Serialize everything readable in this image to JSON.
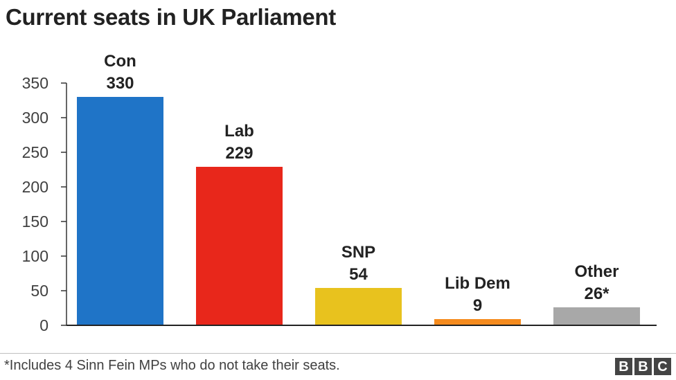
{
  "title": "Current seats in UK Parliament",
  "footnote": "*Includes 4 Sinn Fein MPs who do not take their seats.",
  "logo": {
    "text": "BBC",
    "letters": [
      "B",
      "B",
      "C"
    ]
  },
  "chart_data": {
    "type": "bar",
    "title": "Current seats in UK Parliament",
    "categories": [
      "Con",
      "Lab",
      "SNP",
      "Lib Dem",
      "Other"
    ],
    "values": [
      330,
      229,
      54,
      9,
      26
    ],
    "value_labels": [
      "330",
      "229",
      "54",
      "9",
      "26*"
    ],
    "colors": [
      "#1f74c7",
      "#e8271b",
      "#e8c21e",
      "#f58b1e",
      "#a8a8a8"
    ],
    "xlabel": "",
    "ylabel": "",
    "ylim": [
      0,
      350
    ],
    "yticks": [
      0,
      50,
      100,
      150,
      200,
      250,
      300,
      350
    ],
    "grid": false,
    "legend": "none"
  }
}
